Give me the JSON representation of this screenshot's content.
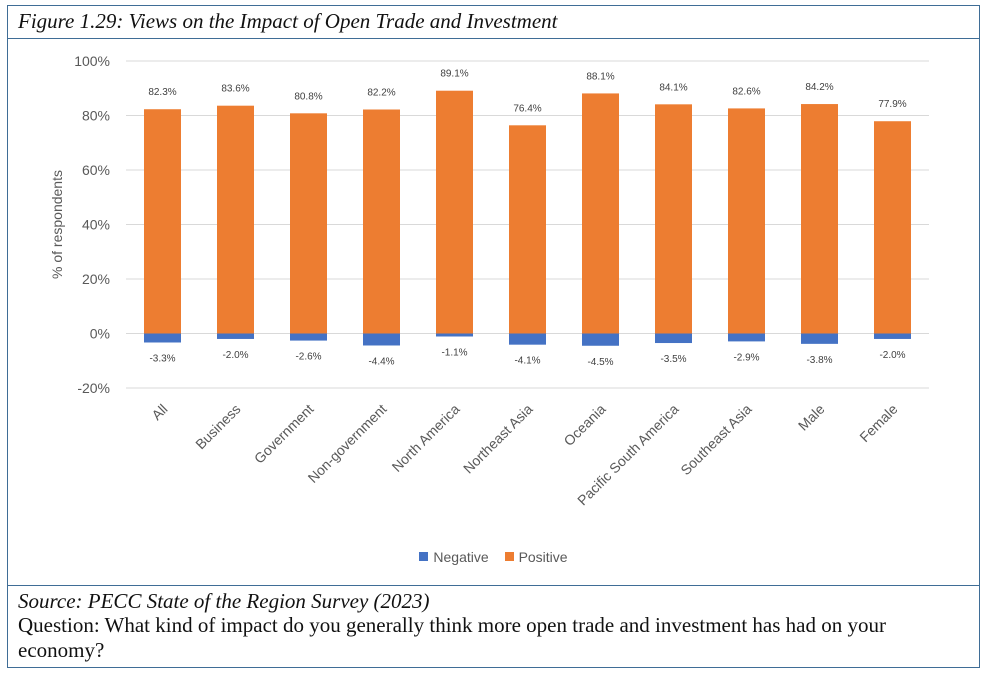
{
  "figure_title": "Figure 1.29: Views on the Impact of Open Trade and Investment",
  "source": "Source: PECC State of the Region Survey (2023)",
  "question": "Question: What kind of impact do you generally think more open trade and investment has had on your economy?",
  "colors": {
    "negative": "#4472c4",
    "positive": "#ed7d31",
    "gridline": "#d9d9d9",
    "border": "#3f6d96"
  },
  "chart_data": {
    "type": "bar",
    "stacked": true,
    "categories": [
      "All",
      "Business",
      "Government",
      "Non-government",
      "North America",
      "Northeast Asia",
      "Oceania",
      "Pacific South America",
      "Southeast Asia",
      "Male",
      "Female"
    ],
    "series": [
      {
        "name": "Negative",
        "values": [
          -3.3,
          -2.0,
          -2.6,
          -4.4,
          -1.1,
          -4.1,
          -4.5,
          -3.5,
          -2.9,
          -3.8,
          -2.0
        ],
        "labels": [
          "-3.3%",
          "-2.0%",
          "-2.6%",
          "-4.4%",
          "-1.1%",
          "-4.1%",
          "-4.5%",
          "-3.5%",
          "-2.9%",
          "-3.8%",
          "-2.0%"
        ]
      },
      {
        "name": "Positive",
        "values": [
          82.3,
          83.6,
          80.8,
          82.2,
          89.1,
          76.4,
          88.1,
          84.1,
          82.6,
          84.2,
          77.9
        ],
        "labels": [
          "82.3%",
          "83.6%",
          "80.8%",
          "82.2%",
          "89.1%",
          "76.4%",
          "88.1%",
          "84.1%",
          "82.6%",
          "84.2%",
          "77.9%"
        ]
      }
    ],
    "ylabel": "% of respondents",
    "xlabel": "",
    "ylim": [
      -20,
      100
    ],
    "yticks": [
      -20,
      0,
      20,
      40,
      60,
      80,
      100
    ],
    "ytick_labels": [
      "-20%",
      "0%",
      "20%",
      "40%",
      "60%",
      "80%",
      "100%"
    ],
    "grid": true,
    "legend": "bottom-center"
  }
}
